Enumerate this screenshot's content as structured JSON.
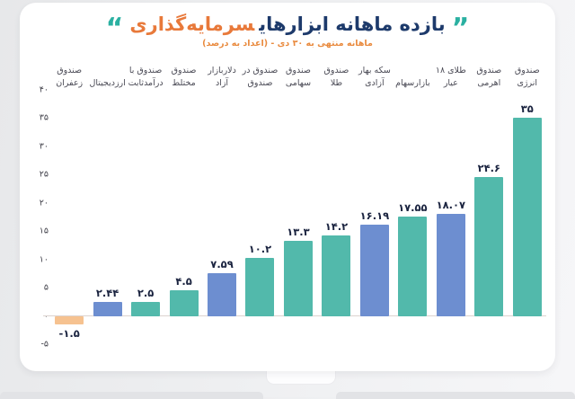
{
  "header": {
    "quote_open": "”",
    "quote_close": "“",
    "title_main": "بازده ماهانه ابزارهای",
    "title_accent": "سرمایه‌گذاری",
    "subtitle": "ماهانه منتهی به ۳۰ دی - (اعداد به درصد)"
  },
  "colors": {
    "title_navy": "#1d3a6b",
    "title_orange": "#e8793a",
    "quote_teal": "#2ab0a1",
    "bar_teal": "#52b9ab",
    "bar_blue": "#6d8ed0",
    "bar_negative_peach": "#f6c290",
    "value_text": "#1b2440",
    "page_background": "#ecedef",
    "card_background": "#ffffff"
  },
  "chart_data": {
    "type": "bar",
    "direction": "rtl",
    "title": "بازده ماهانه ابزارهای سرمایه‌گذاری",
    "subtitle": "ماهانه منتهی به ۳۰ دی - (اعداد به درصد)",
    "unit": "percent",
    "ylim": [
      -5,
      40
    ],
    "yticks": [
      40,
      35,
      30,
      25,
      20,
      15,
      10,
      5,
      0,
      -5
    ],
    "ytick_labels": [
      "۴۰",
      "۳۵",
      "۳۰",
      "۲۵",
      "۲۰",
      "۱۵",
      "۱۰",
      "۵",
      "۰",
      "-۵"
    ],
    "grid": false,
    "legend": false,
    "bars": [
      {
        "label": "صندوق انرژی",
        "label_lines": [
          "صندوق",
          "انرژی"
        ],
        "value": 35,
        "value_label": "۳۵",
        "color": "teal"
      },
      {
        "label": "صندوق اهرمی",
        "label_lines": [
          "صندوق",
          "اهرمی"
        ],
        "value": 24.6,
        "value_label": "۲۴.۶",
        "color": "teal"
      },
      {
        "label": "طلای ۱۸ عیار",
        "label_lines": [
          "طلای ۱۸",
          "عیار"
        ],
        "value": 18.07,
        "value_label": "۱۸.۰۷",
        "color": "blue"
      },
      {
        "label": "بازار سهام",
        "label_lines": [
          "بازارسهام"
        ],
        "value": 17.55,
        "value_label": "۱۷.۵۵",
        "color": "teal"
      },
      {
        "label": "سکه بهار آزادی",
        "label_lines": [
          "سکه بهار",
          "آزادی"
        ],
        "value": 16.19,
        "value_label": "۱۶.۱۹",
        "color": "blue"
      },
      {
        "label": "صندوق طلا",
        "label_lines": [
          "صندوق",
          "طلا"
        ],
        "value": 14.2,
        "value_label": "۱۴.۲",
        "color": "teal"
      },
      {
        "label": "صندوق سهامی",
        "label_lines": [
          "صندوق",
          "سهامی"
        ],
        "value": 13.3,
        "value_label": "۱۳.۳",
        "color": "teal"
      },
      {
        "label": "صندوق در صندوق",
        "label_lines": [
          "صندوق در",
          "صندوق"
        ],
        "value": 10.2,
        "value_label": "۱۰.۲",
        "color": "teal"
      },
      {
        "label": "دلار بازار آزاد",
        "label_lines": [
          "دلاربازار",
          "آزاد"
        ],
        "value": 7.59,
        "value_label": "۷.۵۹",
        "color": "blue"
      },
      {
        "label": "صندوق مختلط",
        "label_lines": [
          "صندوق",
          "مختلط"
        ],
        "value": 4.5,
        "value_label": "۴.۵",
        "color": "teal"
      },
      {
        "label": "صندوق با درآمدثابت",
        "label_lines": [
          "صندوق با",
          "درآمدثابت"
        ],
        "value": 2.5,
        "value_label": "۲.۵",
        "color": "teal"
      },
      {
        "label": "ارزدیجیتال",
        "label_lines": [
          "ارزدیجیتال"
        ],
        "value": 2.44,
        "value_label": "۲.۴۴",
        "color": "blue"
      },
      {
        "label": "صندوق زعفران",
        "label_lines": [
          "صندوق",
          "زعفران"
        ],
        "value": -1.5,
        "value_label": "-۱.۵",
        "color": "peach"
      }
    ]
  }
}
